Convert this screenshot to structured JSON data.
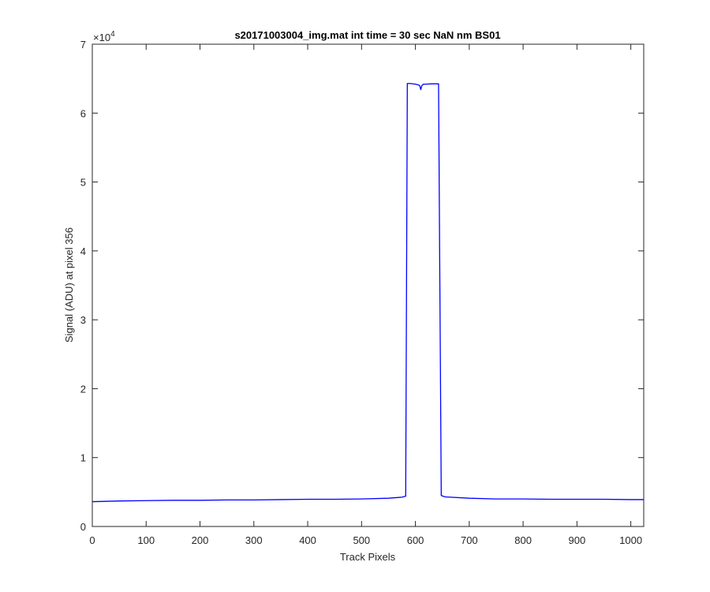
{
  "chart_data": {
    "type": "line",
    "title": "s20171003004_img.mat int time = 30 sec  NaN nm BS01",
    "xlabel": "Track Pixels",
    "ylabel": "Signal (ADU) at pixel 356",
    "xlim": [
      0,
      1024
    ],
    "ylim": [
      0,
      70000
    ],
    "x_ticks": [
      0,
      100,
      200,
      300,
      400,
      500,
      600,
      700,
      800,
      900,
      1000
    ],
    "y_ticks": [
      0,
      10000,
      20000,
      30000,
      40000,
      50000,
      60000,
      70000
    ],
    "y_tick_labels": [
      "0",
      "1",
      "2",
      "3",
      "4",
      "5",
      "6",
      "7"
    ],
    "y_exponent_label": "×10",
    "y_exponent_power": "4",
    "grid": false,
    "series": [
      {
        "color": "#0000ff",
        "x": [
          0,
          50,
          100,
          150,
          200,
          250,
          300,
          350,
          400,
          450,
          500,
          550,
          575,
          582,
          585,
          590,
          600,
          605,
          608,
          610,
          612,
          615,
          620,
          630,
          640,
          643,
          645,
          648,
          655,
          700,
          750,
          800,
          850,
          900,
          950,
          1000,
          1024
        ],
        "y": [
          3600,
          3700,
          3750,
          3800,
          3800,
          3850,
          3850,
          3900,
          3950,
          3950,
          4000,
          4100,
          4250,
          4400,
          64300,
          64300,
          64200,
          64100,
          64000,
          63400,
          64000,
          64200,
          64200,
          64250,
          64250,
          64250,
          40000,
          4500,
          4300,
          4100,
          4000,
          4000,
          3950,
          3950,
          3950,
          3900,
          3900
        ]
      }
    ]
  }
}
